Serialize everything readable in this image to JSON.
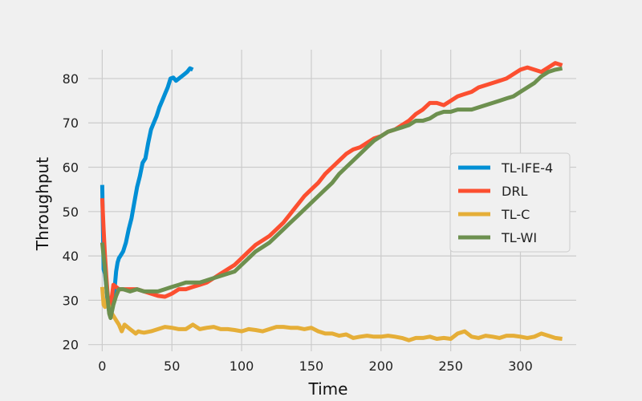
{
  "chart_data": {
    "type": "line",
    "title": "",
    "xlabel": "Time",
    "ylabel": "Throughput",
    "xlim": [
      -10,
      340
    ],
    "ylim": [
      18.5,
      86.5
    ],
    "xticks": [
      0,
      50,
      100,
      150,
      200,
      250,
      300
    ],
    "yticks": [
      20,
      30,
      40,
      50,
      60,
      70,
      80
    ],
    "grid": true,
    "legend_position": "center-right",
    "background": "#f0f0f0",
    "series": [
      {
        "name": "TL-IFE-4",
        "color": "#008fd5",
        "x": [
          0,
          1,
          2,
          3,
          4,
          5,
          6,
          7,
          8,
          9,
          10,
          11,
          12,
          13,
          15,
          17,
          19,
          21,
          23,
          25,
          27,
          29,
          31,
          33,
          35,
          37,
          39,
          41,
          43,
          45,
          47,
          49,
          51,
          53,
          55,
          57,
          59,
          61,
          63,
          65
        ],
        "y": [
          56,
          37,
          36,
          33,
          29,
          27.5,
          27,
          28.5,
          30.5,
          33,
          36.5,
          38.5,
          39.5,
          40,
          41,
          43,
          46,
          48.5,
          52,
          55.5,
          58,
          61,
          62,
          65.5,
          68.5,
          70,
          71.5,
          73.5,
          75,
          76.5,
          78,
          80,
          80.2,
          79.5,
          80,
          80.5,
          81,
          81.5,
          82.3,
          82
        ]
      },
      {
        "name": "DRL",
        "color": "#fc4f30",
        "x": [
          0,
          1,
          2,
          3,
          4,
          5,
          6,
          8,
          10,
          12,
          15,
          20,
          25,
          30,
          35,
          40,
          45,
          50,
          55,
          60,
          65,
          70,
          75,
          80,
          85,
          90,
          95,
          100,
          105,
          110,
          115,
          120,
          125,
          130,
          135,
          140,
          145,
          150,
          155,
          160,
          165,
          170,
          175,
          180,
          185,
          190,
          195,
          200,
          205,
          210,
          215,
          220,
          225,
          230,
          235,
          240,
          245,
          250,
          255,
          260,
          265,
          270,
          275,
          280,
          285,
          290,
          295,
          300,
          305,
          310,
          315,
          320,
          325,
          330
        ],
        "y": [
          53,
          46,
          40,
          35,
          31,
          29,
          28.5,
          33.5,
          33,
          32.5,
          32.5,
          32.5,
          32.5,
          32,
          31.5,
          31,
          30.8,
          31.5,
          32.5,
          32.5,
          33,
          33.5,
          34,
          35,
          36,
          37,
          38,
          39.5,
          41,
          42.5,
          43.5,
          44.5,
          46,
          47.5,
          49.5,
          51.5,
          53.5,
          55,
          56.5,
          58.5,
          60,
          61.5,
          63,
          64,
          64.5,
          65.5,
          66.5,
          67,
          68,
          68.5,
          69.5,
          70.5,
          72,
          73,
          74.5,
          74.5,
          74,
          75,
          76,
          76.5,
          77,
          78,
          78.5,
          79,
          79.5,
          80,
          81,
          82,
          82.5,
          82,
          81.5,
          82.5,
          83.5,
          83
        ]
      },
      {
        "name": "TL-C",
        "color": "#e5ae38",
        "x": [
          0,
          1,
          2,
          3,
          4,
          5,
          6,
          7,
          8,
          10,
          12,
          14,
          16,
          18,
          20,
          22,
          24,
          26,
          28,
          30,
          35,
          40,
          45,
          50,
          55,
          60,
          65,
          70,
          75,
          80,
          85,
          90,
          95,
          100,
          105,
          110,
          115,
          120,
          125,
          130,
          135,
          140,
          145,
          150,
          155,
          160,
          165,
          170,
          175,
          180,
          185,
          190,
          195,
          200,
          205,
          210,
          215,
          220,
          225,
          230,
          235,
          240,
          245,
          250,
          255,
          260,
          265,
          270,
          275,
          280,
          285,
          290,
          295,
          300,
          305,
          310,
          315,
          320,
          325,
          330
        ],
        "y": [
          33,
          29,
          28.5,
          30,
          29.5,
          28.5,
          28,
          27,
          26.5,
          25.5,
          24.5,
          23,
          24.5,
          24,
          23.5,
          23,
          22.5,
          23,
          22.8,
          22.7,
          23,
          23.5,
          24,
          23.8,
          23.5,
          23.5,
          24.5,
          23.5,
          23.8,
          24,
          23.5,
          23.5,
          23.3,
          23,
          23.5,
          23.3,
          23,
          23.5,
          24,
          24,
          23.8,
          23.8,
          23.5,
          23.8,
          23,
          22.5,
          22.5,
          22,
          22.3,
          21.5,
          21.8,
          22,
          21.8,
          21.8,
          22,
          21.8,
          21.5,
          21,
          21.5,
          21.5,
          21.8,
          21.3,
          21.5,
          21.3,
          22.5,
          23,
          21.8,
          21.5,
          22,
          21.8,
          21.5,
          22,
          22,
          21.8,
          21.5,
          21.8,
          22.5,
          22,
          21.5,
          21.3
        ]
      },
      {
        "name": "TL-WI",
        "color": "#6d904f",
        "x": [
          0,
          1,
          2,
          3,
          4,
          5,
          6,
          7,
          8,
          10,
          12,
          15,
          20,
          25,
          30,
          35,
          40,
          45,
          50,
          55,
          60,
          65,
          70,
          75,
          80,
          85,
          90,
          95,
          100,
          105,
          110,
          115,
          120,
          125,
          130,
          135,
          140,
          145,
          150,
          155,
          160,
          165,
          170,
          175,
          180,
          185,
          190,
          195,
          200,
          205,
          210,
          215,
          220,
          225,
          230,
          235,
          240,
          245,
          250,
          255,
          260,
          265,
          270,
          275,
          280,
          285,
          290,
          295,
          300,
          305,
          310,
          315,
          320,
          325,
          330
        ],
        "y": [
          43,
          40,
          37,
          33,
          30,
          27,
          26,
          27.5,
          29,
          31,
          32.5,
          32.5,
          32,
          32.5,
          32,
          32,
          32,
          32.5,
          33,
          33.5,
          34,
          34,
          34,
          34.5,
          35,
          35.5,
          36,
          36.5,
          38,
          39.5,
          41,
          42,
          43,
          44.5,
          46,
          47.5,
          49,
          50.5,
          52,
          53.5,
          55,
          56.5,
          58.5,
          60,
          61.5,
          63,
          64.5,
          66,
          67,
          68,
          68.5,
          69,
          69.5,
          70.5,
          70.5,
          71,
          72,
          72.5,
          72.5,
          73,
          73,
          73,
          73.5,
          74,
          74.5,
          75,
          75.5,
          76,
          77,
          78,
          79,
          80.5,
          81.5,
          82,
          82.3
        ]
      }
    ]
  }
}
